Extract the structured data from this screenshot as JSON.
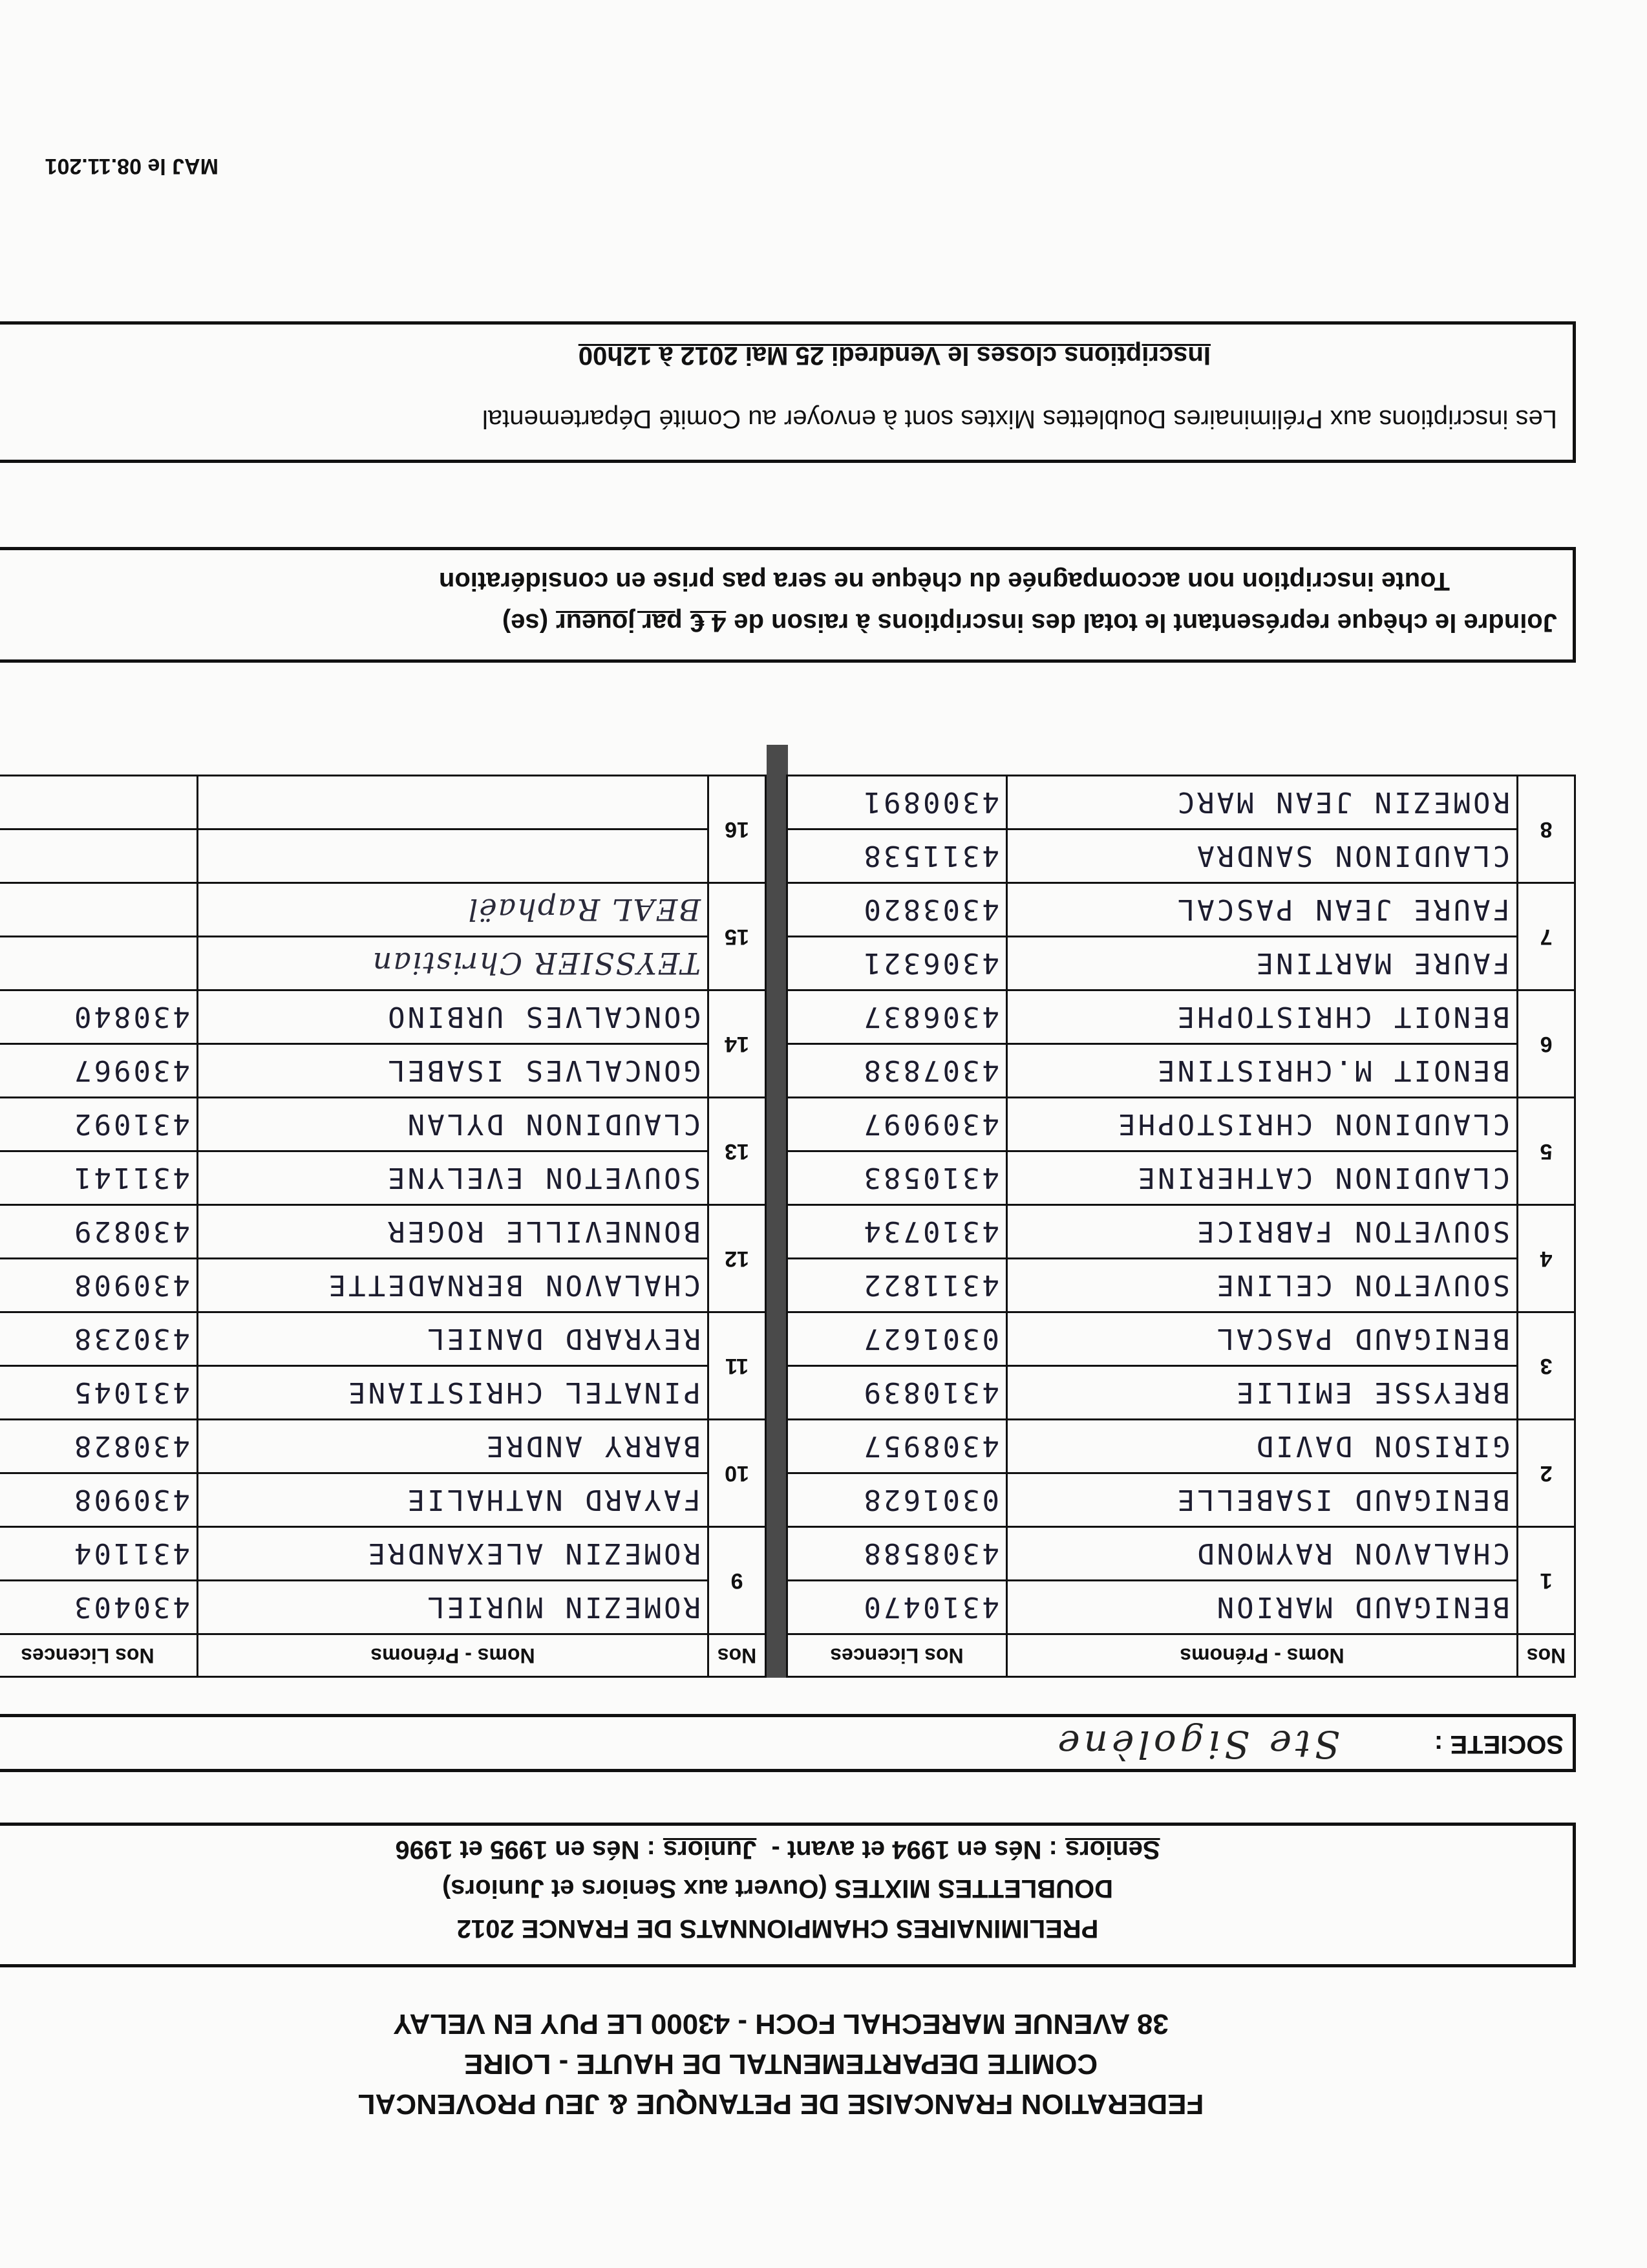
{
  "header": {
    "lines": [
      "FEDERATION FRANCAISE DE PETANQUE & JEU PROVENCAL",
      "COMITE DEPARTEMENTAL DE HAUTE - LOIRE",
      "38 AVENUE MARECHAL FOCH - 43000 LE PUY EN VELAY"
    ]
  },
  "competition": {
    "title": "PRELIMINAIRES CHAMPIONNATS DE FRANCE 2012",
    "subtitle": "DOUBLETTES MIXTES (Ouvert aux Seniors et Juniors)",
    "categories": [
      {
        "label": "Seniors",
        "text": ": Nés en 1994 et avant -"
      },
      {
        "label": "Juniors",
        "text": ": Nés en 1995 et 1996"
      }
    ]
  },
  "societe": {
    "label": "SOCIETE :",
    "value": "Ste Sigolène"
  },
  "table": {
    "columns": [
      "Nos",
      "Noms - Prénoms",
      "Nos Licences"
    ],
    "teams": [
      {
        "no": "1",
        "players": [
          {
            "name": "BENIGAUD MARION",
            "licence": "4310470"
          },
          {
            "name": "CHALAVON RAYMOND",
            "licence": "4308588"
          }
        ]
      },
      {
        "no": "2",
        "players": [
          {
            "name": "BENIGAUD ISABELLE",
            "licence": "0301628"
          },
          {
            "name": "GIRISON DAVID",
            "licence": "4308957"
          }
        ]
      },
      {
        "no": "3",
        "players": [
          {
            "name": "BREYSSE EMILIE",
            "licence": "4310839"
          },
          {
            "name": "BENIGAUD PASCAL",
            "licence": "0301627"
          }
        ]
      },
      {
        "no": "4",
        "players": [
          {
            "name": "SOUVETON CELINE",
            "licence": "4311822"
          },
          {
            "name": "SOUVETON FABRICE",
            "licence": "4310734"
          }
        ]
      },
      {
        "no": "5",
        "players": [
          {
            "name": "CLAUDINON CATHERINE",
            "licence": "4310583"
          },
          {
            "name": "CLAUDINON CHRISTOPHE",
            "licence": "4309097"
          }
        ]
      },
      {
        "no": "6",
        "players": [
          {
            "name": "BENOIT M.CHRISTINE",
            "licence": "4307838"
          },
          {
            "name": "BENOIT CHRISTOPHE",
            "licence": "4306837"
          }
        ]
      },
      {
        "no": "7",
        "players": [
          {
            "name": "FAURE MARTINE",
            "licence": "4306321"
          },
          {
            "name": "FAURE JEAN PASCAL",
            "licence": "4303820"
          }
        ]
      },
      {
        "no": "8",
        "players": [
          {
            "name": "CLAUDINON SANDRA",
            "licence": "4311538"
          },
          {
            "name": "ROMEZIN JEAN MARC",
            "licence": "4300891"
          }
        ]
      },
      {
        "no": "9",
        "players": [
          {
            "name": "ROMEZIN MURIEL",
            "licence": "430403"
          },
          {
            "name": "ROMEZIN ALEXANDRE",
            "licence": "431104"
          }
        ]
      },
      {
        "no": "10",
        "players": [
          {
            "name": "FAYARD NATHALIE",
            "licence": "430908"
          },
          {
            "name": "BARRY ANDRE",
            "licence": "430828"
          }
        ]
      },
      {
        "no": "11",
        "players": [
          {
            "name": "PINATEL CHRISTIANE",
            "licence": "431045"
          },
          {
            "name": "REYRARD DANIEL",
            "licence": "430238"
          }
        ]
      },
      {
        "no": "12",
        "players": [
          {
            "name": "CHALAVON BERNADETTE",
            "licence": "430908"
          },
          {
            "name": "BONNEVILLE ROGER",
            "licence": "430829"
          }
        ]
      },
      {
        "no": "13",
        "players": [
          {
            "name": "SOUVETON EVELYNE",
            "licence": "431141"
          },
          {
            "name": "CLAUDINON DYLAN",
            "licence": "431092"
          }
        ]
      },
      {
        "no": "14",
        "players": [
          {
            "name": "GONCALVES ISABEL",
            "licence": "430967"
          },
          {
            "name": "GONCALVES URBINO",
            "licence": "430840"
          }
        ]
      },
      {
        "no": "15",
        "players": [
          {
            "name": "TEYSSIER Christian"
          },
          {
            "name": "BEAL Raphaël"
          }
        ]
      },
      {
        "no": "16"
      }
    ]
  },
  "payment": {
    "parts": [
      "Joindre le chèque représentant le total des inscriptions à raison de",
      "4 €",
      "par joueur",
      "(se)"
    ],
    "note": "Toute inscription non accompagnée du chèque ne sera pas prise en considération"
  },
  "deadline": {
    "text": "Les inscriptions aux Préliminaires Doublettes Mixtes sont à envoyer au Comité Départemental",
    "closing": "Inscriptions closes le Vendredi 25 Mai 2012 à 12h00"
  },
  "footer": {
    "update": "MAJ le 08.11.201"
  }
}
